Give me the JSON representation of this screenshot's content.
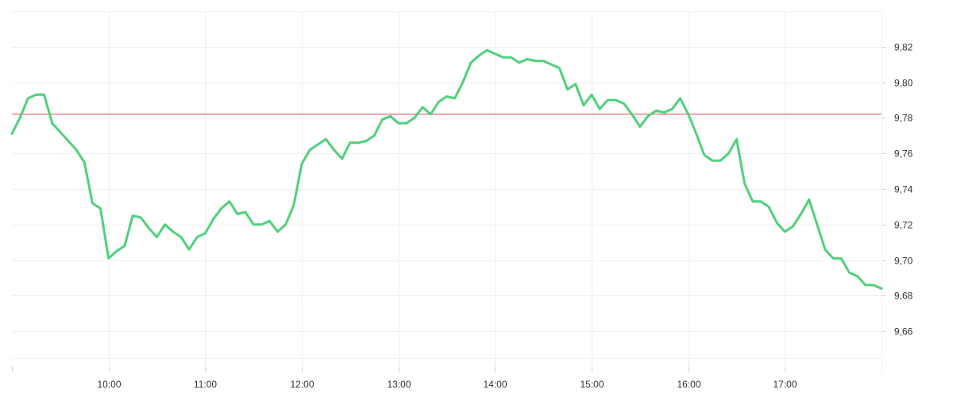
{
  "chart_data": {
    "type": "line",
    "title": "",
    "xlabel": "",
    "ylabel": "",
    "x_ticks": [
      "10:00",
      "11:00",
      "12:00",
      "13:00",
      "14:00",
      "15:00",
      "16:00",
      "17:00"
    ],
    "y_ticks": [
      "9,66",
      "9,68",
      "9,70",
      "9,72",
      "9,74",
      "9,76",
      "9,78",
      "9,80",
      "9,82"
    ],
    "xlim": [
      "09:00",
      "18:00"
    ],
    "ylim": [
      9.64,
      9.84
    ],
    "grid": true,
    "y_axis_position": "right",
    "reference_line": {
      "value": 9.782,
      "color": "#e8474c"
    },
    "series": [
      {
        "color": "#4fd17a",
        "x": [
          "09:00",
          "09:05",
          "09:10",
          "09:15",
          "09:20",
          "09:25",
          "09:30",
          "09:35",
          "09:40",
          "09:45",
          "09:50",
          "09:55",
          "10:00",
          "10:05",
          "10:10",
          "10:15",
          "10:20",
          "10:25",
          "10:30",
          "10:35",
          "10:40",
          "10:45",
          "10:50",
          "10:55",
          "11:00",
          "11:05",
          "11:10",
          "11:15",
          "11:20",
          "11:25",
          "11:30",
          "11:35",
          "11:40",
          "11:45",
          "11:50",
          "11:55",
          "12:00",
          "12:05",
          "12:10",
          "12:15",
          "12:20",
          "12:25",
          "12:30",
          "12:35",
          "12:40",
          "12:45",
          "12:50",
          "12:55",
          "13:00",
          "13:05",
          "13:10",
          "13:15",
          "13:20",
          "13:25",
          "13:30",
          "13:35",
          "13:40",
          "13:45",
          "13:50",
          "13:55",
          "14:00",
          "14:05",
          "14:10",
          "14:15",
          "14:20",
          "14:25",
          "14:30",
          "14:35",
          "14:40",
          "14:45",
          "14:50",
          "14:55",
          "15:00",
          "15:05",
          "15:10",
          "15:15",
          "15:20",
          "15:25",
          "15:30",
          "15:35",
          "15:40",
          "15:45",
          "15:50",
          "15:55",
          "16:00",
          "16:05",
          "16:10",
          "16:15",
          "16:20",
          "16:25",
          "16:30",
          "16:35",
          "16:40",
          "16:45",
          "16:50",
          "16:55",
          "17:00",
          "17:05",
          "17:10",
          "17:15",
          "17:20",
          "17:25",
          "17:30",
          "17:35",
          "17:40",
          "17:45",
          "17:50",
          "17:55",
          "18:00"
        ],
        "values": [
          9.771,
          9.78,
          9.791,
          9.793,
          9.793,
          9.777,
          9.772,
          9.767,
          9.762,
          9.755,
          9.732,
          9.729,
          9.701,
          9.705,
          9.708,
          9.725,
          9.724,
          9.718,
          9.713,
          9.72,
          9.716,
          9.713,
          9.706,
          9.713,
          9.715,
          9.723,
          9.729,
          9.733,
          9.726,
          9.727,
          9.72,
          9.72,
          9.722,
          9.716,
          9.72,
          9.731,
          9.754,
          9.762,
          9.765,
          9.768,
          9.762,
          9.757,
          9.766,
          9.766,
          9.767,
          9.77,
          9.779,
          9.781,
          9.777,
          9.777,
          9.78,
          9.786,
          9.782,
          9.789,
          9.792,
          9.791,
          9.8,
          9.811,
          9.815,
          9.818,
          9.816,
          9.814,
          9.814,
          9.811,
          9.813,
          9.812,
          9.812,
          9.81,
          9.808,
          9.796,
          9.799,
          9.787,
          9.793,
          9.785,
          9.79,
          9.79,
          9.788,
          9.782,
          9.775,
          9.781,
          9.784,
          9.783,
          9.785,
          9.791,
          9.782,
          9.771,
          9.759,
          9.756,
          9.756,
          9.76,
          9.768,
          9.743,
          9.733,
          9.733,
          9.73,
          9.721,
          9.716,
          9.719,
          9.726,
          9.734,
          9.72,
          9.706,
          9.701,
          9.701,
          9.693,
          9.691,
          9.686,
          9.686,
          9.684
        ]
      }
    ]
  }
}
